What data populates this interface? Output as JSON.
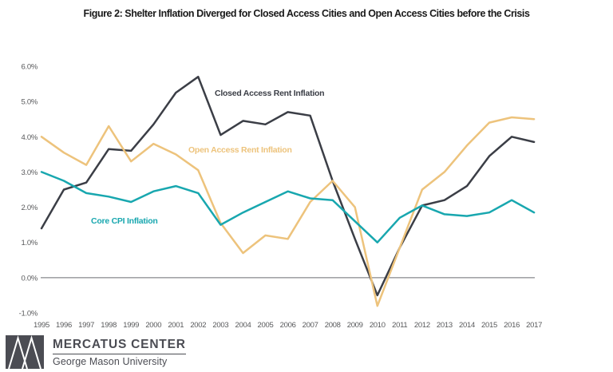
{
  "title": "Figure 2: Shelter Inflation Diverged for Closed Access Cities and Open Access Cities before the Crisis",
  "chart_data": {
    "type": "line",
    "x": [
      1995,
      1996,
      1997,
      1998,
      1999,
      2000,
      2001,
      2002,
      2003,
      2004,
      2005,
      2006,
      2007,
      2008,
      2009,
      2010,
      2011,
      2012,
      2013,
      2014,
      2015,
      2016,
      2017
    ],
    "series": [
      {
        "name": "Closed Access Rent Inflation",
        "color": "#3b3e46",
        "values": [
          1.4,
          2.5,
          2.7,
          3.65,
          3.6,
          4.35,
          5.25,
          5.7,
          4.05,
          4.45,
          4.35,
          4.7,
          4.6,
          2.75,
          1.1,
          -0.5,
          0.85,
          2.05,
          2.2,
          2.6,
          3.45,
          4.0,
          3.85
        ]
      },
      {
        "name": "Open Access Rent Inflation",
        "color": "#edc37c",
        "values": [
          4.0,
          3.55,
          3.2,
          4.3,
          3.3,
          3.8,
          3.5,
          3.05,
          1.55,
          0.7,
          1.2,
          1.1,
          2.15,
          2.75,
          2.0,
          -0.8,
          0.85,
          2.5,
          3.0,
          3.75,
          4.4,
          4.55,
          4.5
        ]
      },
      {
        "name": "Core CPI Inflation",
        "color": "#18a7af",
        "values": [
          3.0,
          2.75,
          2.4,
          2.3,
          2.15,
          2.45,
          2.6,
          2.4,
          1.5,
          1.85,
          2.15,
          2.45,
          2.25,
          2.2,
          1.6,
          1.0,
          1.7,
          2.05,
          1.8,
          1.75,
          1.85,
          2.2,
          1.85
        ]
      }
    ],
    "ylim": [
      -1.0,
      6.0
    ],
    "yticks": [
      "6.0%",
      "5.0%",
      "4.0%",
      "3.0%",
      "2.0%",
      "1.0%",
      "0.0%",
      "-1.0%"
    ],
    "ytick_values": [
      6,
      5,
      4,
      3,
      2,
      1,
      0,
      -1
    ],
    "grid": false,
    "zero_line": true,
    "legend_position": "inline-annotations"
  },
  "footer": {
    "org": "MERCATUS CENTER",
    "university": "George Mason University"
  },
  "colors": {
    "axis_text": "#58595b",
    "zero_line": "#6b6c70",
    "title_text": "#1a1a1a",
    "logo_gray": "#4b4c53"
  }
}
